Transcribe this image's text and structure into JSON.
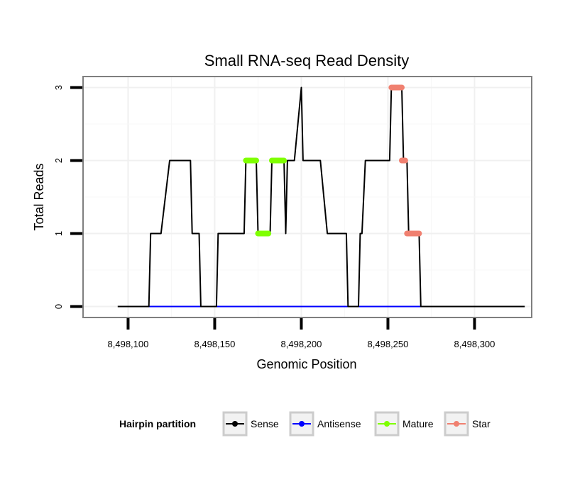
{
  "chart_data": {
    "type": "line",
    "title": "Small RNA-seq Read Density",
    "xlabel": "Genomic Position",
    "ylabel": "Total Reads",
    "xlim": [
      8498074,
      8498333
    ],
    "ylim": [
      -0.15,
      3.15
    ],
    "x_ticks": [
      8498100,
      8498150,
      8498200,
      8498250,
      8498300
    ],
    "x_tick_labels": [
      "8,498,100",
      "8,498,150",
      "8,498,200",
      "8,498,250",
      "8,498,300"
    ],
    "y_ticks": [
      0,
      1,
      2,
      3
    ],
    "y_tick_labels": [
      "0",
      "1",
      "2",
      "3"
    ],
    "grid": true,
    "legend_position": "bottom",
    "legend": {
      "title": "Hairpin partition",
      "entries": [
        {
          "name": "Sense",
          "color": "#000000"
        },
        {
          "name": "Antisense",
          "color": "#0000ff"
        },
        {
          "name": "Mature",
          "color": "#7fff00"
        },
        {
          "name": "Star",
          "color": "#f08070"
        }
      ]
    },
    "series": [
      {
        "name": "Sense",
        "color": "#000000",
        "points": [
          [
            8498094,
            0
          ],
          [
            8498112,
            0
          ],
          [
            8498113,
            1
          ],
          [
            8498118,
            1
          ],
          [
            8498119,
            1
          ],
          [
            8498124,
            2
          ],
          [
            8498136,
            2
          ],
          [
            8498137,
            1
          ],
          [
            8498141,
            1
          ],
          [
            8498142,
            0
          ],
          [
            8498151,
            0
          ],
          [
            8498152,
            1
          ],
          [
            8498167,
            1
          ],
          [
            8498168,
            2
          ],
          [
            8498174,
            2
          ],
          [
            8498175,
            1
          ],
          [
            8498182,
            1
          ],
          [
            8498183,
            2
          ],
          [
            8498190,
            2
          ],
          [
            8498191,
            1
          ],
          [
            8498192,
            2
          ],
          [
            8498196,
            2
          ],
          [
            8498200,
            3
          ],
          [
            8498201,
            2
          ],
          [
            8498210,
            2
          ],
          [
            8498211,
            2
          ],
          [
            8498215,
            1
          ],
          [
            8498226,
            1
          ],
          [
            8498227,
            0
          ],
          [
            8498233,
            0
          ],
          [
            8498234,
            1
          ],
          [
            8498235,
            1
          ],
          [
            8498237,
            2
          ],
          [
            8498251,
            2
          ],
          [
            8498252,
            3
          ],
          [
            8498258,
            3
          ],
          [
            8498259,
            2
          ],
          [
            8498261,
            2
          ],
          [
            8498262,
            1
          ],
          [
            8498268,
            1
          ],
          [
            8498269,
            0
          ],
          [
            8498329,
            0
          ]
        ]
      },
      {
        "name": "Antisense",
        "color": "#0000ff",
        "points": [
          [
            8498112,
            0
          ],
          [
            8498269,
            0
          ]
        ]
      }
    ],
    "marker_segments": [
      {
        "series": "Mature",
        "color": "#7fff00",
        "y": 2,
        "x": [
          8498168,
          8498174
        ]
      },
      {
        "series": "Mature",
        "color": "#7fff00",
        "y": 1,
        "x": [
          8498175,
          8498181
        ]
      },
      {
        "series": "Mature",
        "color": "#7fff00",
        "y": 2,
        "x": [
          8498183,
          8498190
        ]
      },
      {
        "series": "Star",
        "color": "#f08070",
        "y": 3,
        "x": [
          8498252,
          8498258
        ]
      },
      {
        "series": "Star",
        "color": "#f08070",
        "y": 2,
        "x": [
          8498258,
          8498260
        ]
      },
      {
        "series": "Star",
        "color": "#f08070",
        "y": 1,
        "x": [
          8498261,
          8498268
        ]
      }
    ]
  }
}
